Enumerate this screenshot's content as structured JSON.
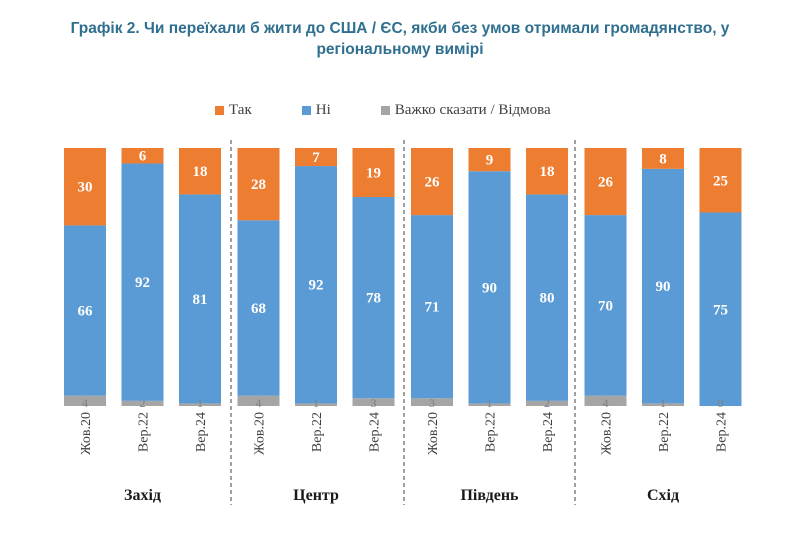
{
  "title": "Графік 2. Чи переїхали б жити до США / ЄС, якби без умов отримали громадянство, у регіональному вимірі",
  "colors": {
    "tak": "#ed7d31",
    "ni": "#5b9bd5",
    "vazhko": "#a5a5a5"
  },
  "chart_data": {
    "type": "bar",
    "stacked": true,
    "title": "Графік 2. Чи переїхали б жити до США / ЄС, якби без умов отримали громадянство, у регіональному вимірі",
    "legend": [
      "Так",
      "Ні",
      "Важко сказати / Відмова"
    ],
    "legend_position": "top",
    "ylim": [
      0,
      100
    ],
    "groups": [
      {
        "region": "Захід",
        "categories": [
          "Жов.20",
          "Вер.22",
          "Вер.24"
        ],
        "tak": [
          30,
          6,
          18
        ],
        "ni": [
          66,
          92,
          81
        ],
        "vazhko": [
          4,
          2,
          1
        ]
      },
      {
        "region": "Центр",
        "categories": [
          "Жов.20",
          "Вер.22",
          "Вер.24"
        ],
        "tak": [
          28,
          7,
          19
        ],
        "ni": [
          68,
          92,
          78
        ],
        "vazhko": [
          4,
          1,
          3
        ]
      },
      {
        "region": "Південь",
        "categories": [
          "Жов.20",
          "Вер.22",
          "Вер.24"
        ],
        "tak": [
          26,
          9,
          18
        ],
        "ni": [
          71,
          90,
          80
        ],
        "vazhko": [
          3,
          1,
          2
        ]
      },
      {
        "region": "Схід",
        "categories": [
          "Жов.20",
          "Вер.22",
          "Вер.24"
        ],
        "tak": [
          26,
          8,
          25
        ],
        "ni": [
          70,
          90,
          75
        ],
        "vazhko": [
          4,
          1,
          0
        ]
      }
    ]
  }
}
